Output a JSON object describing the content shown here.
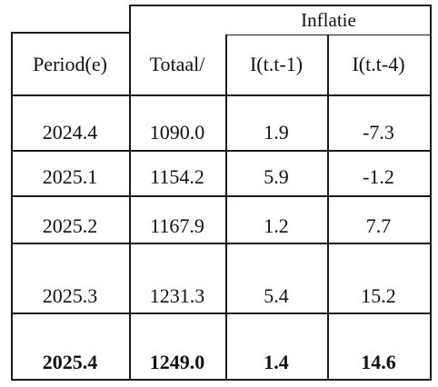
{
  "table": {
    "group_header": "Inflatie",
    "columns": [
      "Period(e)",
      "Totaal/",
      "I(t.t-1)",
      "I(t.t-4)"
    ],
    "rows": [
      {
        "period": "2024.4",
        "total": "1090.0",
        "i_t1": "1.9",
        "i_t4": "-7.3"
      },
      {
        "period": "2025.1",
        "total": "1154.2",
        "i_t1": "5.9",
        "i_t4": "-1.2"
      },
      {
        "period": "2025.2",
        "total": "1167.9",
        "i_t1": "1.2",
        "i_t4": "7.7"
      },
      {
        "period": "2025.3",
        "total": "1231.3",
        "i_t1": "5.4",
        "i_t4": "15.2"
      },
      {
        "period": "2025.4",
        "total": "1249.0",
        "i_t1": "1.4",
        "i_t4": "14.6"
      }
    ]
  }
}
